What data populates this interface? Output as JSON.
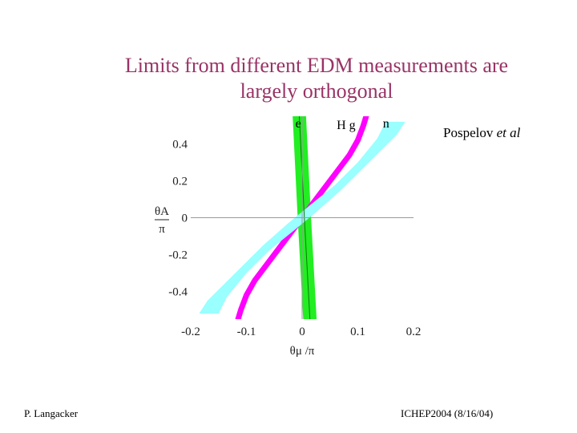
{
  "slide": {
    "title_line1": "Limits from different EDM measurements are",
    "title_line2": "largely orthogonal",
    "attribution_name": "Pospelov",
    "attribution_etal": "et al",
    "footer_left": "P. Langacker",
    "footer_right": "ICHEP2004 (8/16/04)"
  },
  "colors": {
    "title": "#993366",
    "e_band": "#22ee22",
    "hg_band": "#ff00ff",
    "n_band": "#99ffff",
    "axis_line": "#999999"
  },
  "chart_data": {
    "type": "line",
    "title": "",
    "xlabel": "θμ /π",
    "ylabel": "θA / π",
    "xlim": [
      -0.2,
      0.2
    ],
    "ylim": [
      -0.55,
      0.55
    ],
    "x_ticks": [
      {
        "value": -0.2,
        "label": "-0.2"
      },
      {
        "value": -0.1,
        "label": "-0.1"
      },
      {
        "value": 0,
        "label": "0"
      },
      {
        "value": 0.1,
        "label": "0.1"
      },
      {
        "value": 0.2,
        "label": "0.2"
      }
    ],
    "y_ticks": [
      {
        "value": 0.4,
        "label": "0.4"
      },
      {
        "value": 0.2,
        "label": "0.2"
      },
      {
        "value": 0,
        "label": "0"
      },
      {
        "value": -0.2,
        "label": "-0.2"
      },
      {
        "value": -0.4,
        "label": "-0.4"
      }
    ],
    "series": [
      {
        "name": "e",
        "color": "#22ee22",
        "type": "band",
        "lower": [
          [
            -0.017,
            0.55
          ],
          [
            -0.008,
            0.0
          ],
          [
            0.002,
            -0.55
          ]
        ],
        "upper": [
          [
            0.007,
            0.55
          ],
          [
            0.016,
            0.0
          ],
          [
            0.026,
            -0.55
          ]
        ]
      },
      {
        "name": "H g",
        "color": "#ff00ff",
        "type": "line",
        "points": [
          [
            -0.115,
            -0.55
          ],
          [
            -0.11,
            -0.5
          ],
          [
            -0.1,
            -0.42
          ],
          [
            -0.085,
            -0.34
          ],
          [
            -0.06,
            -0.24
          ],
          [
            -0.03,
            -0.12
          ],
          [
            0.0,
            0.0
          ],
          [
            0.03,
            0.12
          ],
          [
            0.06,
            0.24
          ],
          [
            0.085,
            0.34
          ],
          [
            0.1,
            0.42
          ],
          [
            0.11,
            0.5
          ],
          [
            0.115,
            0.55
          ]
        ]
      },
      {
        "name": "n",
        "color": "#99ffff",
        "type": "band",
        "lower": [
          [
            -0.185,
            -0.52
          ],
          [
            -0.17,
            -0.45
          ],
          [
            -0.12,
            -0.3
          ],
          [
            -0.07,
            -0.15
          ],
          [
            -0.025,
            -0.03
          ],
          [
            0.015,
            0.07
          ],
          [
            0.06,
            0.18
          ],
          [
            0.1,
            0.3
          ],
          [
            0.135,
            0.43
          ],
          [
            0.15,
            0.52
          ]
        ],
        "upper": [
          [
            -0.15,
            -0.52
          ],
          [
            -0.135,
            -0.43
          ],
          [
            -0.1,
            -0.3
          ],
          [
            -0.06,
            -0.18
          ],
          [
            -0.015,
            -0.07
          ],
          [
            0.025,
            0.03
          ],
          [
            0.07,
            0.15
          ],
          [
            0.12,
            0.3
          ],
          [
            0.17,
            0.45
          ],
          [
            0.185,
            0.52
          ]
        ]
      }
    ],
    "series_labels": [
      {
        "series": "e",
        "text": "e",
        "x": -0.012,
        "y": 0.49
      },
      {
        "series": "H g",
        "text": "H g",
        "x": 0.062,
        "y": 0.48
      },
      {
        "series": "n",
        "text": "n",
        "x": 0.145,
        "y": 0.49
      }
    ]
  }
}
